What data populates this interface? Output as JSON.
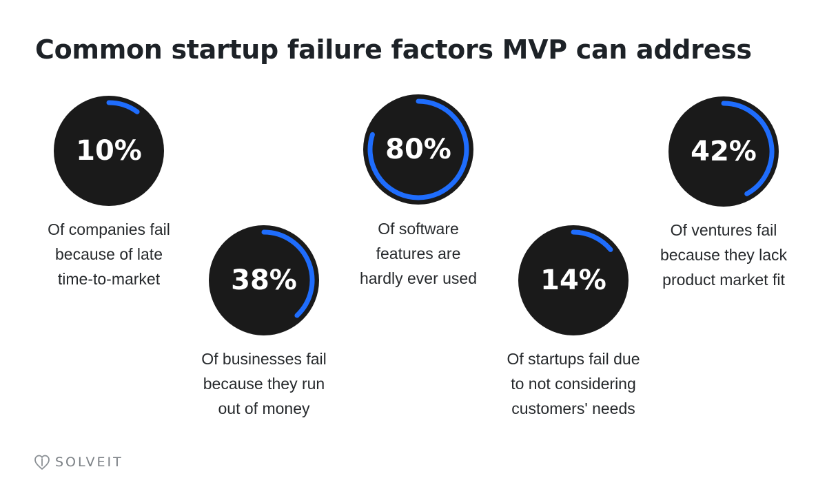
{
  "title": "Common startup failure factors MVP can address",
  "colors": {
    "circle": "#1a1a1a",
    "arc": "#1f6dfd",
    "text": "#26292c"
  },
  "chart_data": {
    "type": "gauge",
    "items": [
      {
        "value": 10,
        "label": "10%",
        "caption": [
          "Of companies fail",
          "because of late",
          "time-to-market"
        ]
      },
      {
        "value": 38,
        "label": "38%",
        "caption": [
          "Of businesses fail",
          "because they run",
          "out of money"
        ]
      },
      {
        "value": 80,
        "label": "80%",
        "caption": [
          "Of software",
          "features are",
          "hardly ever used"
        ]
      },
      {
        "value": 14,
        "label": "14%",
        "caption": [
          "Of startups fail due",
          "to not considering",
          "customers' needs"
        ]
      },
      {
        "value": 42,
        "label": "42%",
        "caption": [
          "Of ventures fail",
          "because they lack",
          "product market fit"
        ]
      }
    ]
  },
  "logo": {
    "text": "SOLVEIT",
    "icon": "solveit-heart-icon"
  }
}
